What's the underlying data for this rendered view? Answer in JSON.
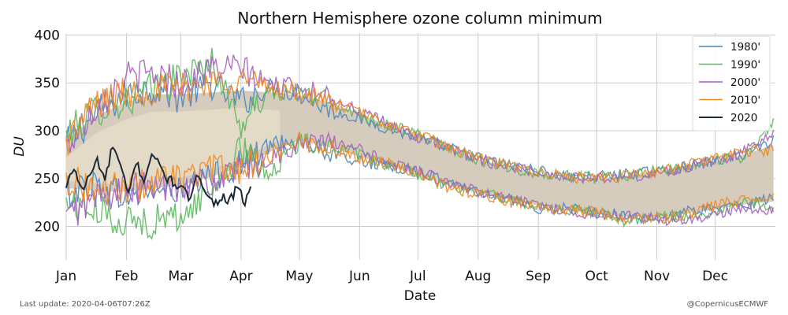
{
  "chart_data": {
    "type": "line",
    "title": "Northern Hemisphere ozone column minimum",
    "xlabel": "Date",
    "ylabel": "DU",
    "x_ticks": [
      "Jan",
      "Feb",
      "Mar",
      "Apr",
      "May",
      "Jun",
      "Jul",
      "Aug",
      "Sep",
      "Oct",
      "Nov",
      "Dec"
    ],
    "x_tick_days": [
      0,
      31,
      59,
      90,
      120,
      151,
      181,
      212,
      243,
      273,
      304,
      334
    ],
    "xlim": [
      0,
      365
    ],
    "y_ticks": [
      "200",
      "250",
      "300",
      "350",
      "400"
    ],
    "ylim": [
      165,
      402
    ],
    "grid": true,
    "legend_position": "top-right",
    "envelope": {
      "description": "",
      "day": [
        0,
        15,
        31,
        45,
        59,
        75,
        90,
        105,
        120,
        135,
        151,
        166,
        181,
        197,
        212,
        228,
        243,
        258,
        273,
        289,
        304,
        319,
        334,
        349,
        364
      ],
      "upper": [
        290,
        315,
        330,
        338,
        338,
        340,
        342,
        340,
        337,
        330,
        318,
        305,
        295,
        282,
        270,
        262,
        255,
        250,
        250,
        253,
        258,
        263,
        268,
        275,
        285
      ],
      "lower": [
        240,
        237,
        236,
        240,
        243,
        252,
        262,
        278,
        290,
        283,
        273,
        263,
        255,
        242,
        235,
        228,
        222,
        217,
        213,
        210,
        210,
        213,
        218,
        223,
        226
      ],
      "fill_color": "#d6ccbd",
      "pale_fill_color": "#efe8cf"
    },
    "series": [
      {
        "name": "1980'",
        "color": "#4c86ba",
        "style": "pair",
        "day": [
          0,
          15,
          31,
          45,
          59,
          75,
          90,
          105,
          120,
          135,
          151,
          166,
          181,
          197,
          212,
          228,
          243,
          258,
          273,
          289,
          304,
          319,
          334,
          349,
          364
        ],
        "upper": [
          285,
          318,
          338,
          345,
          335,
          348,
          330,
          345,
          338,
          322,
          312,
          302,
          292,
          282,
          272,
          264,
          258,
          252,
          252,
          255,
          257,
          262,
          268,
          276,
          290
        ],
        "lower": [
          235,
          245,
          230,
          238,
          236,
          252,
          265,
          285,
          292,
          275,
          268,
          262,
          258,
          245,
          238,
          228,
          215,
          220,
          214,
          212,
          205,
          215,
          220,
          222,
          230
        ]
      },
      {
        "name": "1990'",
        "color": "#5bb85d",
        "style": "pair",
        "day": [
          0,
          15,
          31,
          45,
          59,
          75,
          90,
          105,
          120,
          135,
          151,
          166,
          181,
          197,
          212,
          228,
          243,
          258,
          273,
          289,
          304,
          319,
          334,
          349,
          364
        ],
        "upper": [
          295,
          322,
          330,
          345,
          355,
          372,
          305,
          340,
          340,
          332,
          316,
          306,
          296,
          282,
          270,
          261,
          256,
          253,
          250,
          252,
          258,
          262,
          270,
          272,
          310
        ],
        "lower": [
          225,
          215,
          205,
          205,
          210,
          238,
          280,
          255,
          288,
          285,
          275,
          263,
          254,
          242,
          236,
          229,
          222,
          218,
          214,
          205,
          212,
          210,
          213,
          225,
          220
        ]
      },
      {
        "name": "2000'",
        "color": "#a661bf",
        "style": "pair",
        "day": [
          0,
          15,
          31,
          45,
          59,
          75,
          90,
          105,
          120,
          135,
          151,
          166,
          181,
          197,
          212,
          228,
          243,
          258,
          273,
          289,
          304,
          319,
          334,
          349,
          364
        ],
        "upper": [
          282,
          325,
          355,
          360,
          350,
          365,
          365,
          348,
          345,
          338,
          320,
          307,
          293,
          281,
          270,
          262,
          257,
          252,
          250,
          251,
          255,
          262,
          268,
          278,
          300
        ],
        "lower": [
          210,
          230,
          238,
          240,
          245,
          245,
          258,
          270,
          286,
          288,
          280,
          267,
          258,
          245,
          236,
          228,
          222,
          216,
          212,
          210,
          208,
          205,
          212,
          220,
          215
        ]
      },
      {
        "name": "2010'",
        "color": "#f08a24",
        "style": "pair",
        "day": [
          0,
          15,
          31,
          45,
          59,
          75,
          90,
          105,
          120,
          135,
          151,
          166,
          181,
          197,
          212,
          228,
          243,
          258,
          273,
          289,
          304,
          319,
          334,
          349,
          364
        ],
        "upper": [
          288,
          328,
          340,
          343,
          345,
          350,
          355,
          345,
          340,
          330,
          320,
          306,
          296,
          283,
          272,
          263,
          257,
          252,
          249,
          253,
          257,
          264,
          272,
          278,
          280
        ],
        "lower": [
          250,
          238,
          240,
          246,
          250,
          260,
          260,
          275,
          290,
          282,
          272,
          266,
          256,
          240,
          234,
          226,
          220,
          217,
          215,
          208,
          208,
          212,
          222,
          228,
          232
        ]
      },
      {
        "name": "2020",
        "color": "#1b2a38",
        "style": "single",
        "day": [
          0,
          4,
          8,
          12,
          16,
          20,
          24,
          28,
          32,
          36,
          40,
          44,
          48,
          52,
          56,
          60,
          64,
          68,
          72,
          76,
          80,
          84,
          88,
          92,
          95
        ],
        "values": [
          240,
          262,
          238,
          252,
          270,
          248,
          285,
          262,
          232,
          268,
          247,
          277,
          263,
          250,
          245,
          238,
          228,
          255,
          238,
          222,
          232,
          226,
          240,
          225,
          242
        ]
      }
    ]
  },
  "footer": {
    "last_update": "Last update: 2020-04-06T07:26Z",
    "credit": "@CopernicusECMWF"
  }
}
